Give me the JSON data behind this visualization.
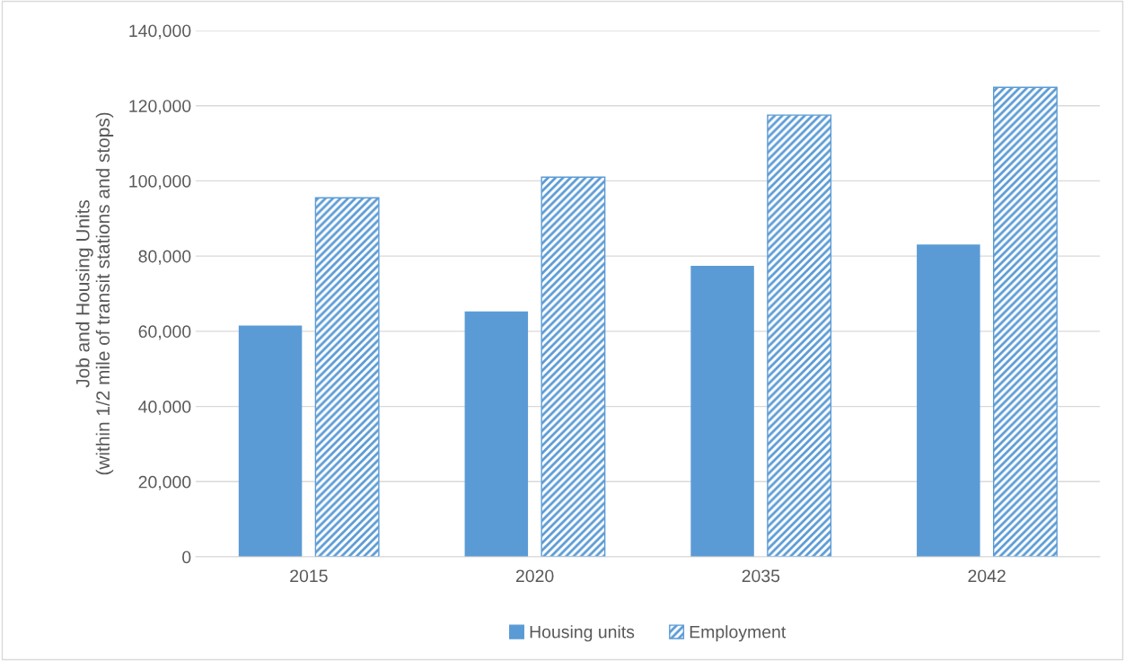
{
  "chart_data": {
    "type": "bar",
    "ylabel": "Job and Housing Units\n(within 1/2 mile of transit stations and stops)",
    "categories": [
      "2015",
      "2020",
      "2035",
      "2042"
    ],
    "series": [
      {
        "name": "Housing units",
        "color": "#5b9bd5",
        "values": [
          61500,
          65300,
          77400,
          83100
        ]
      },
      {
        "name": "Employment",
        "color": "#5b9bd5",
        "values": [
          95500,
          101000,
          117500,
          124900
        ]
      }
    ],
    "ylim": [
      0,
      140000
    ],
    "yticks": [
      {
        "value": 0,
        "label": "0"
      },
      {
        "value": 20000,
        "label": "20,000"
      },
      {
        "value": 40000,
        "label": "40,000"
      },
      {
        "value": 60000,
        "label": "60,000"
      },
      {
        "value": 80000,
        "label": "80,000"
      },
      {
        "value": 100000,
        "label": "100,000"
      },
      {
        "value": 120000,
        "label": "120,000"
      },
      {
        "value": 140000,
        "label": "140,000"
      }
    ],
    "grid": "y",
    "legend": "bottom"
  }
}
